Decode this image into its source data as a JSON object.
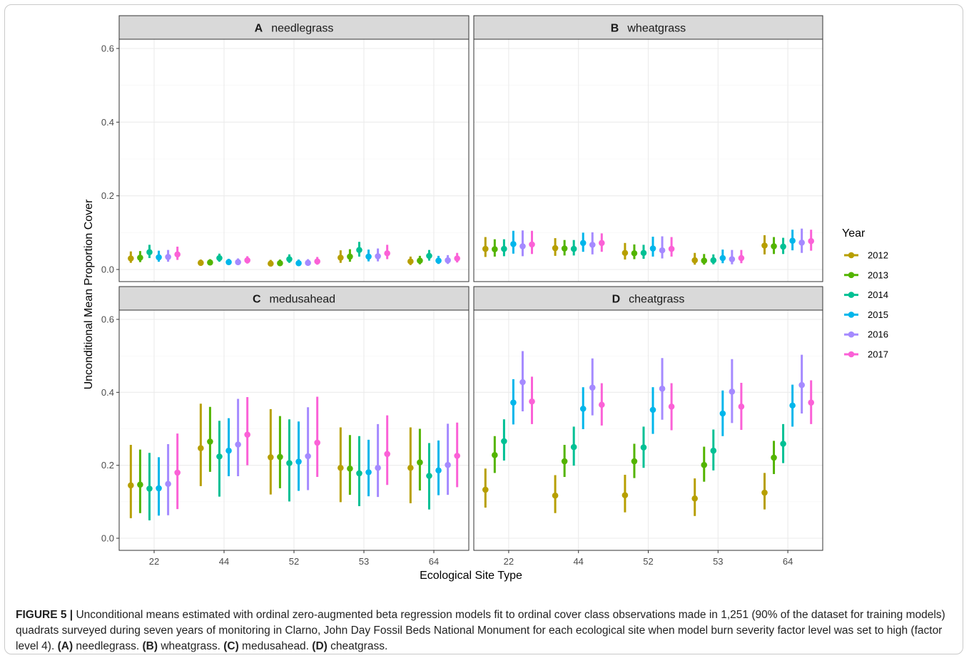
{
  "chart_data": {
    "type": "scatter",
    "subtype": "point-range faceted",
    "xlabel": "Ecological Site Type",
    "ylabel": "Unconditional Mean Proportion Cover",
    "categories": [
      "22",
      "44",
      "52",
      "53",
      "64"
    ],
    "ylim": [
      0,
      0.6
    ],
    "yticks": [
      0.0,
      0.2,
      0.4,
      0.6
    ],
    "ytick_labels": [
      "0.0",
      "0.2",
      "0.4",
      "0.6"
    ],
    "grid": true,
    "legend": {
      "title": "Year",
      "position": "right",
      "entries": [
        {
          "label": "2012",
          "color": "#B79F00"
        },
        {
          "label": "2013",
          "color": "#53B400"
        },
        {
          "label": "2014",
          "color": "#00C094"
        },
        {
          "label": "2015",
          "color": "#00B6EB"
        },
        {
          "label": "2016",
          "color": "#A58AFF"
        },
        {
          "label": "2017",
          "color": "#FB61D7"
        }
      ]
    },
    "panels": [
      {
        "letter": "A",
        "label": "needlegrass",
        "series": [
          {
            "name": "2012",
            "mean": [
              0.03,
              0.018,
              0.016,
              0.032,
              0.022
            ],
            "low": [
              0.018,
              0.01,
              0.009,
              0.018,
              0.012
            ],
            "high": [
              0.049,
              0.027,
              0.026,
              0.052,
              0.035
            ]
          },
          {
            "name": "2013",
            "mean": [
              0.032,
              0.019,
              0.017,
              0.035,
              0.024
            ],
            "low": [
              0.02,
              0.012,
              0.01,
              0.021,
              0.014
            ],
            "high": [
              0.05,
              0.028,
              0.027,
              0.055,
              0.037
            ]
          },
          {
            "name": "2014",
            "mean": [
              0.047,
              0.031,
              0.028,
              0.053,
              0.037
            ],
            "low": [
              0.031,
              0.021,
              0.018,
              0.035,
              0.024
            ],
            "high": [
              0.067,
              0.043,
              0.041,
              0.075,
              0.053
            ]
          },
          {
            "name": "2015",
            "mean": [
              0.033,
              0.02,
              0.017,
              0.035,
              0.024
            ],
            "low": [
              0.021,
              0.013,
              0.01,
              0.022,
              0.015
            ],
            "high": [
              0.051,
              0.029,
              0.027,
              0.054,
              0.037
            ]
          },
          {
            "name": "2016",
            "mean": [
              0.034,
              0.02,
              0.018,
              0.036,
              0.025
            ],
            "low": [
              0.021,
              0.012,
              0.01,
              0.022,
              0.015
            ],
            "high": [
              0.053,
              0.03,
              0.028,
              0.057,
              0.039
            ]
          },
          {
            "name": "2017",
            "mean": [
              0.041,
              0.025,
              0.022,
              0.044,
              0.03
            ],
            "low": [
              0.026,
              0.016,
              0.013,
              0.028,
              0.019
            ],
            "high": [
              0.062,
              0.036,
              0.034,
              0.067,
              0.045
            ]
          }
        ]
      },
      {
        "letter": "B",
        "label": "wheatgrass",
        "series": [
          {
            "name": "2012",
            "mean": [
              0.056,
              0.058,
              0.045,
              0.025,
              0.065
            ],
            "low": [
              0.034,
              0.037,
              0.027,
              0.013,
              0.041
            ],
            "high": [
              0.088,
              0.085,
              0.072,
              0.045,
              0.093
            ]
          },
          {
            "name": "2013",
            "mean": [
              0.055,
              0.057,
              0.044,
              0.024,
              0.063
            ],
            "low": [
              0.035,
              0.038,
              0.028,
              0.013,
              0.042
            ],
            "high": [
              0.082,
              0.08,
              0.068,
              0.042,
              0.088
            ]
          },
          {
            "name": "2014",
            "mean": [
              0.056,
              0.056,
              0.045,
              0.025,
              0.062
            ],
            "low": [
              0.036,
              0.038,
              0.029,
              0.014,
              0.042
            ],
            "high": [
              0.082,
              0.08,
              0.067,
              0.041,
              0.086
            ]
          },
          {
            "name": "2015",
            "mean": [
              0.069,
              0.072,
              0.057,
              0.031,
              0.078
            ],
            "low": [
              0.043,
              0.048,
              0.035,
              0.017,
              0.052
            ],
            "high": [
              0.105,
              0.1,
              0.089,
              0.054,
              0.108
            ]
          },
          {
            "name": "2016",
            "mean": [
              0.063,
              0.067,
              0.052,
              0.028,
              0.073
            ],
            "low": [
              0.036,
              0.041,
              0.03,
              0.014,
              0.045
            ],
            "high": [
              0.106,
              0.101,
              0.09,
              0.053,
              0.111
            ]
          },
          {
            "name": "2017",
            "mean": [
              0.068,
              0.072,
              0.056,
              0.031,
              0.077
            ],
            "low": [
              0.042,
              0.048,
              0.035,
              0.017,
              0.051
            ],
            "high": [
              0.105,
              0.098,
              0.088,
              0.053,
              0.108
            ]
          }
        ]
      },
      {
        "letter": "C",
        "label": "medusahead",
        "series": [
          {
            "name": "2012",
            "mean": [
              0.145,
              0.247,
              0.222,
              0.193,
              0.193
            ],
            "low": [
              0.055,
              0.143,
              0.12,
              0.099,
              0.096
            ],
            "high": [
              0.256,
              0.369,
              0.354,
              0.304,
              0.304
            ]
          },
          {
            "name": "2013",
            "mean": [
              0.147,
              0.265,
              0.223,
              0.191,
              0.208
            ],
            "low": [
              0.069,
              0.182,
              0.137,
              0.119,
              0.131
            ],
            "high": [
              0.243,
              0.36,
              0.335,
              0.283,
              0.3
            ]
          },
          {
            "name": "2014",
            "mean": [
              0.136,
              0.224,
              0.206,
              0.178,
              0.171
            ],
            "low": [
              0.049,
              0.114,
              0.101,
              0.088,
              0.079
            ],
            "high": [
              0.234,
              0.322,
              0.326,
              0.28,
              0.261
            ]
          },
          {
            "name": "2015",
            "mean": [
              0.137,
              0.24,
              0.21,
              0.181,
              0.186
            ],
            "low": [
              0.062,
              0.17,
              0.13,
              0.115,
              0.118
            ],
            "high": [
              0.222,
              0.329,
              0.32,
              0.27,
              0.268
            ]
          },
          {
            "name": "2016",
            "mean": [
              0.149,
              0.257,
              0.225,
              0.193,
              0.201
            ],
            "low": [
              0.063,
              0.17,
              0.132,
              0.113,
              0.119
            ],
            "high": [
              0.258,
              0.382,
              0.359,
              0.313,
              0.314
            ]
          },
          {
            "name": "2017",
            "mean": [
              0.18,
              0.284,
              0.262,
              0.231,
              0.226
            ],
            "low": [
              0.08,
              0.2,
              0.168,
              0.146,
              0.14
            ],
            "high": [
              0.287,
              0.387,
              0.388,
              0.337,
              0.317
            ]
          }
        ]
      },
      {
        "letter": "D",
        "label": "cheatgrass",
        "series": [
          {
            "name": "2012",
            "mean": [
              0.133,
              0.117,
              0.118,
              0.109,
              0.125
            ],
            "low": [
              0.084,
              0.069,
              0.071,
              0.061,
              0.079
            ],
            "high": [
              0.191,
              0.173,
              0.174,
              0.164,
              0.179
            ]
          },
          {
            "name": "2013",
            "mean": [
              0.228,
              0.211,
              0.211,
              0.201,
              0.221
            ],
            "low": [
              0.179,
              0.168,
              0.165,
              0.155,
              0.176
            ],
            "high": [
              0.28,
              0.256,
              0.259,
              0.251,
              0.267
            ]
          },
          {
            "name": "2014",
            "mean": [
              0.266,
              0.25,
              0.249,
              0.24,
              0.259
            ],
            "low": [
              0.213,
              0.199,
              0.193,
              0.186,
              0.206
            ],
            "high": [
              0.326,
              0.306,
              0.306,
              0.298,
              0.313
            ]
          },
          {
            "name": "2015",
            "mean": [
              0.372,
              0.355,
              0.352,
              0.342,
              0.364
            ],
            "low": [
              0.312,
              0.299,
              0.286,
              0.28,
              0.306
            ],
            "high": [
              0.436,
              0.414,
              0.414,
              0.405,
              0.421
            ]
          },
          {
            "name": "2016",
            "mean": [
              0.428,
              0.413,
              0.41,
              0.402,
              0.42
            ],
            "low": [
              0.348,
              0.337,
              0.325,
              0.316,
              0.342
            ],
            "high": [
              0.513,
              0.493,
              0.494,
              0.491,
              0.503
            ]
          },
          {
            "name": "2017",
            "mean": [
              0.375,
              0.366,
              0.361,
              0.361,
              0.372
            ],
            "low": [
              0.313,
              0.309,
              0.296,
              0.297,
              0.313
            ],
            "high": [
              0.443,
              0.425,
              0.425,
              0.426,
              0.433
            ]
          }
        ]
      }
    ]
  },
  "caption": {
    "figure_label": "FIGURE 5 |",
    "text_1": " Unconditional means estimated with ordinal zero-augmented beta regression models fit to ordinal cover class observations made in 1,251 (90% of the dataset for training models) quadrats surveyed during seven years of monitoring in Clarno, John Day Fossil Beds National Monument for each ecological site when model burn severity factor level was set to high (factor level 4). ",
    "a_label": "(A)",
    "a_text": " needlegrass. ",
    "b_label": "(B)",
    "b_text": " wheatgrass. ",
    "c_label": "(C)",
    "c_text": " medusahead. ",
    "d_label": "(D)",
    "d_text": " cheatgrass."
  }
}
